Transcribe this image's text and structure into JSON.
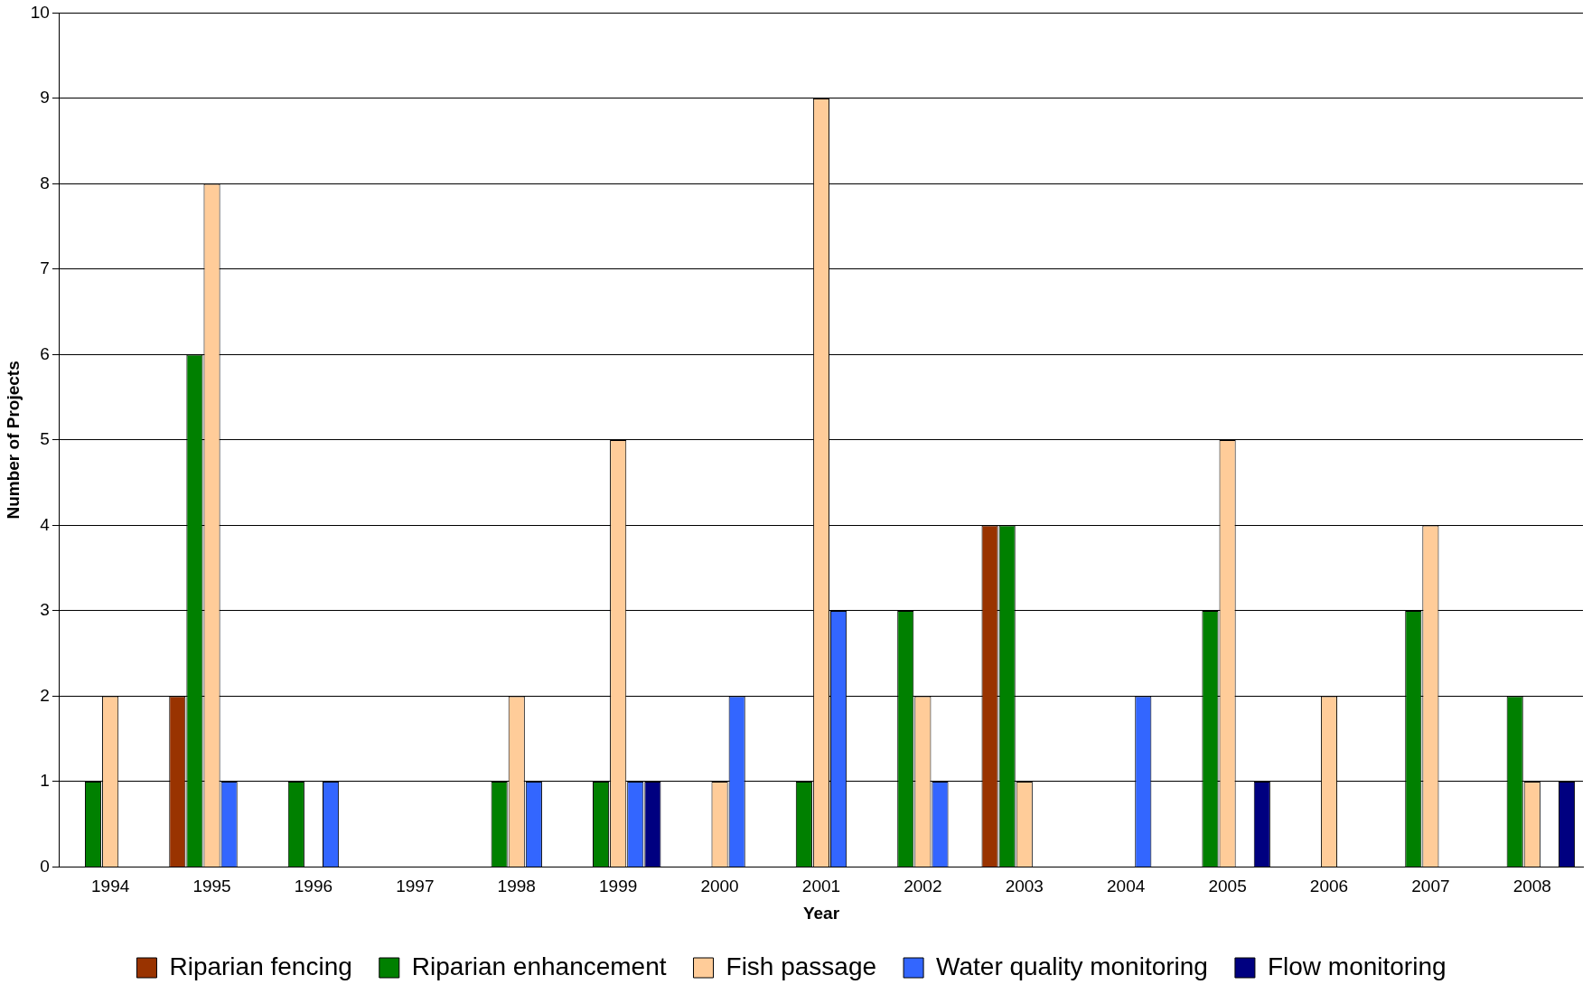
{
  "chart_data": {
    "type": "bar",
    "xlabel": "Year",
    "ylabel": "Number of Projects",
    "categories": [
      "1994",
      "1995",
      "1996",
      "1997",
      "1998",
      "1999",
      "2000",
      "2001",
      "2002",
      "2003",
      "2004",
      "2005",
      "2006",
      "2007",
      "2008"
    ],
    "series": [
      {
        "name": "Riparian fencing",
        "color": "#993300",
        "values": [
          0,
          2,
          0,
          0,
          0,
          0,
          0,
          0,
          0,
          4,
          0,
          0,
          0,
          0,
          0
        ]
      },
      {
        "name": "Riparian enhancement",
        "color": "#008000",
        "values": [
          1,
          6,
          1,
          0,
          1,
          1,
          0,
          1,
          3,
          4,
          0,
          3,
          0,
          3,
          2
        ]
      },
      {
        "name": "Fish passage",
        "color": "#ffcc99",
        "values": [
          2,
          8,
          0,
          0,
          2,
          5,
          1,
          9,
          2,
          1,
          0,
          5,
          2,
          4,
          1
        ]
      },
      {
        "name": "Water quality monitoring",
        "color": "#3366ff",
        "values": [
          0,
          1,
          1,
          0,
          1,
          1,
          2,
          3,
          1,
          0,
          2,
          0,
          0,
          0,
          0
        ]
      },
      {
        "name": "Flow monitoring",
        "color": "#000080",
        "values": [
          0,
          0,
          0,
          0,
          0,
          1,
          0,
          0,
          0,
          0,
          0,
          1,
          0,
          0,
          1
        ]
      }
    ],
    "ylim": [
      0,
      10
    ],
    "yticks": [
      0,
      1,
      2,
      3,
      4,
      5,
      6,
      7,
      8,
      9,
      10
    ],
    "grid": "y",
    "legend": "bottom"
  }
}
